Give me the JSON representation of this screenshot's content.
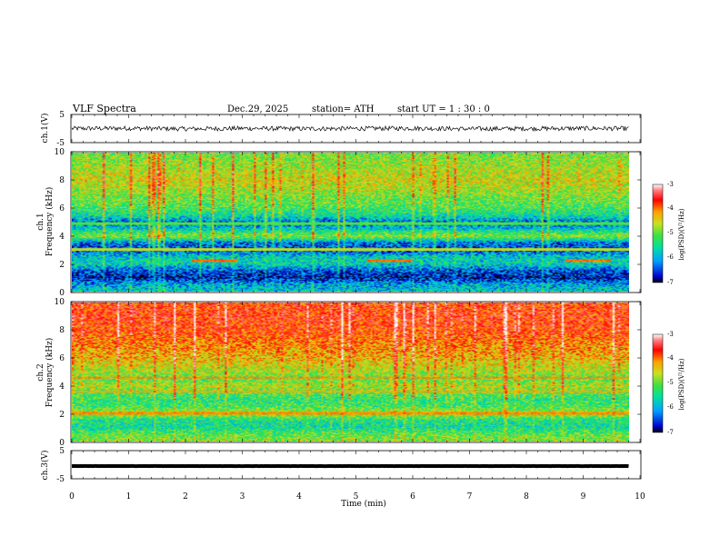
{
  "header": {
    "title": "VLF  Spectra",
    "date": "Dec.29, 2025",
    "station": "station= ATH",
    "start_ut": "start  UT  =   1 : 30 : 0"
  },
  "chart_data": [
    {
      "type": "line",
      "name": "ch1_waveform",
      "ylabel": "ch.1(V)",
      "ylim": [
        -5,
        5
      ],
      "yticks": [
        "5",
        "-5"
      ],
      "x": [
        0,
        1,
        2,
        3,
        4,
        5,
        6,
        7,
        8,
        9,
        9.8
      ],
      "values": [
        0,
        0.1,
        -0.1,
        0.05,
        -0.05,
        0,
        0.1,
        -0.1,
        0,
        0.05,
        0
      ],
      "color": "#000000"
    },
    {
      "type": "heatmap",
      "name": "ch1_spectrogram",
      "ylabel_top": "ch.1",
      "ylabel": "Frequency  (kHz)",
      "ylim": [
        0,
        10
      ],
      "yticks": [
        "0",
        "2",
        "4",
        "6",
        "8",
        "10"
      ],
      "xlim": [
        0,
        10
      ],
      "data_end_min": 9.8,
      "colorbar": {
        "label": "log(PSD)(V²/Hz)",
        "range": [
          -7,
          -3
        ],
        "ticks": [
          "-3",
          "-4",
          "-5",
          "-6",
          "-7"
        ],
        "colors": [
          "#000000",
          "#0000cc",
          "#00a0ff",
          "#00e0a0",
          "#40e040",
          "#c8e020",
          "#ffa000",
          "#ff0000",
          "#ff8080",
          "#ffffff"
        ]
      },
      "profile_khz": [
        0,
        0.5,
        1,
        1.5,
        2,
        2.5,
        3,
        3.5,
        4,
        4.5,
        5,
        5.5,
        6,
        7,
        8,
        9,
        10
      ],
      "profile_level": [
        -5.8,
        -6.0,
        -6.6,
        -6.3,
        -5.7,
        -5.8,
        -6.4,
        -6.2,
        -5.0,
        -5.8,
        -6.2,
        -5.6,
        -5.3,
        -5.0,
        -4.7,
        -4.9,
        -5.1
      ],
      "tones": [
        {
          "khz": 2.2,
          "t_start": 2.1,
          "t_end": 2.9,
          "level": -4.2
        },
        {
          "khz": 2.2,
          "t_start": 5.2,
          "t_end": 6.0,
          "level": -4.2
        },
        {
          "khz": 2.2,
          "t_start": 8.7,
          "t_end": 9.5,
          "level": -4.2
        },
        {
          "khz": 3.0,
          "t_start": 0,
          "t_end": 9.8,
          "level": -4.8
        },
        {
          "khz": 4.9,
          "t_start": 0,
          "t_end": 9.8,
          "level": -5.2
        }
      ]
    },
    {
      "type": "heatmap",
      "name": "ch2_spectrogram",
      "ylabel_top": "ch.2",
      "ylabel": "Frequency  (kHz)",
      "ylim": [
        0,
        10
      ],
      "yticks": [
        "0",
        "2",
        "4",
        "6",
        "8",
        "10"
      ],
      "xlim": [
        0,
        10
      ],
      "data_end_min": 9.8,
      "colorbar": {
        "label": "log(PSD)(V²/Hz)",
        "range": [
          -7,
          -3
        ],
        "ticks": [
          "-3",
          "-4",
          "-5",
          "-6",
          "-7"
        ],
        "colors": [
          "#000000",
          "#0000cc",
          "#00a0ff",
          "#00e0a0",
          "#40e040",
          "#c8e020",
          "#ffa000",
          "#ff0000",
          "#ff8080",
          "#ffffff"
        ]
      },
      "profile_khz": [
        0,
        0.5,
        1,
        1.5,
        2,
        2.5,
        3,
        3.5,
        4,
        4.5,
        5,
        5.5,
        6,
        7,
        8,
        9,
        10
      ],
      "profile_level": [
        -5.0,
        -5.2,
        -5.6,
        -5.5,
        -4.8,
        -5.3,
        -5.4,
        -5.2,
        -4.8,
        -5.2,
        -4.9,
        -4.7,
        -4.5,
        -4.3,
        -4.0,
        -3.9,
        -4.0
      ],
      "tones": [
        {
          "khz": 4.6,
          "t_start": 0,
          "t_end": 9.8,
          "level": -4.3
        },
        {
          "khz": 3.6,
          "t_start": 0,
          "t_end": 9.8,
          "level": -4.4
        },
        {
          "khz": 2.0,
          "t_start": 0,
          "t_end": 9.8,
          "level": -4.3
        }
      ]
    },
    {
      "type": "line",
      "name": "ch3_waveform",
      "ylabel": "ch.3(V)",
      "ylim": [
        -5,
        5
      ],
      "yticks": [
        "5",
        "-5"
      ],
      "x": [
        0,
        9.8
      ],
      "values": [
        0,
        0
      ],
      "color": "#000000",
      "xlabel": "Time  (min)",
      "xticks": [
        "0",
        "1",
        "2",
        "3",
        "4",
        "5",
        "6",
        "7",
        "8",
        "9",
        "10"
      ]
    }
  ]
}
